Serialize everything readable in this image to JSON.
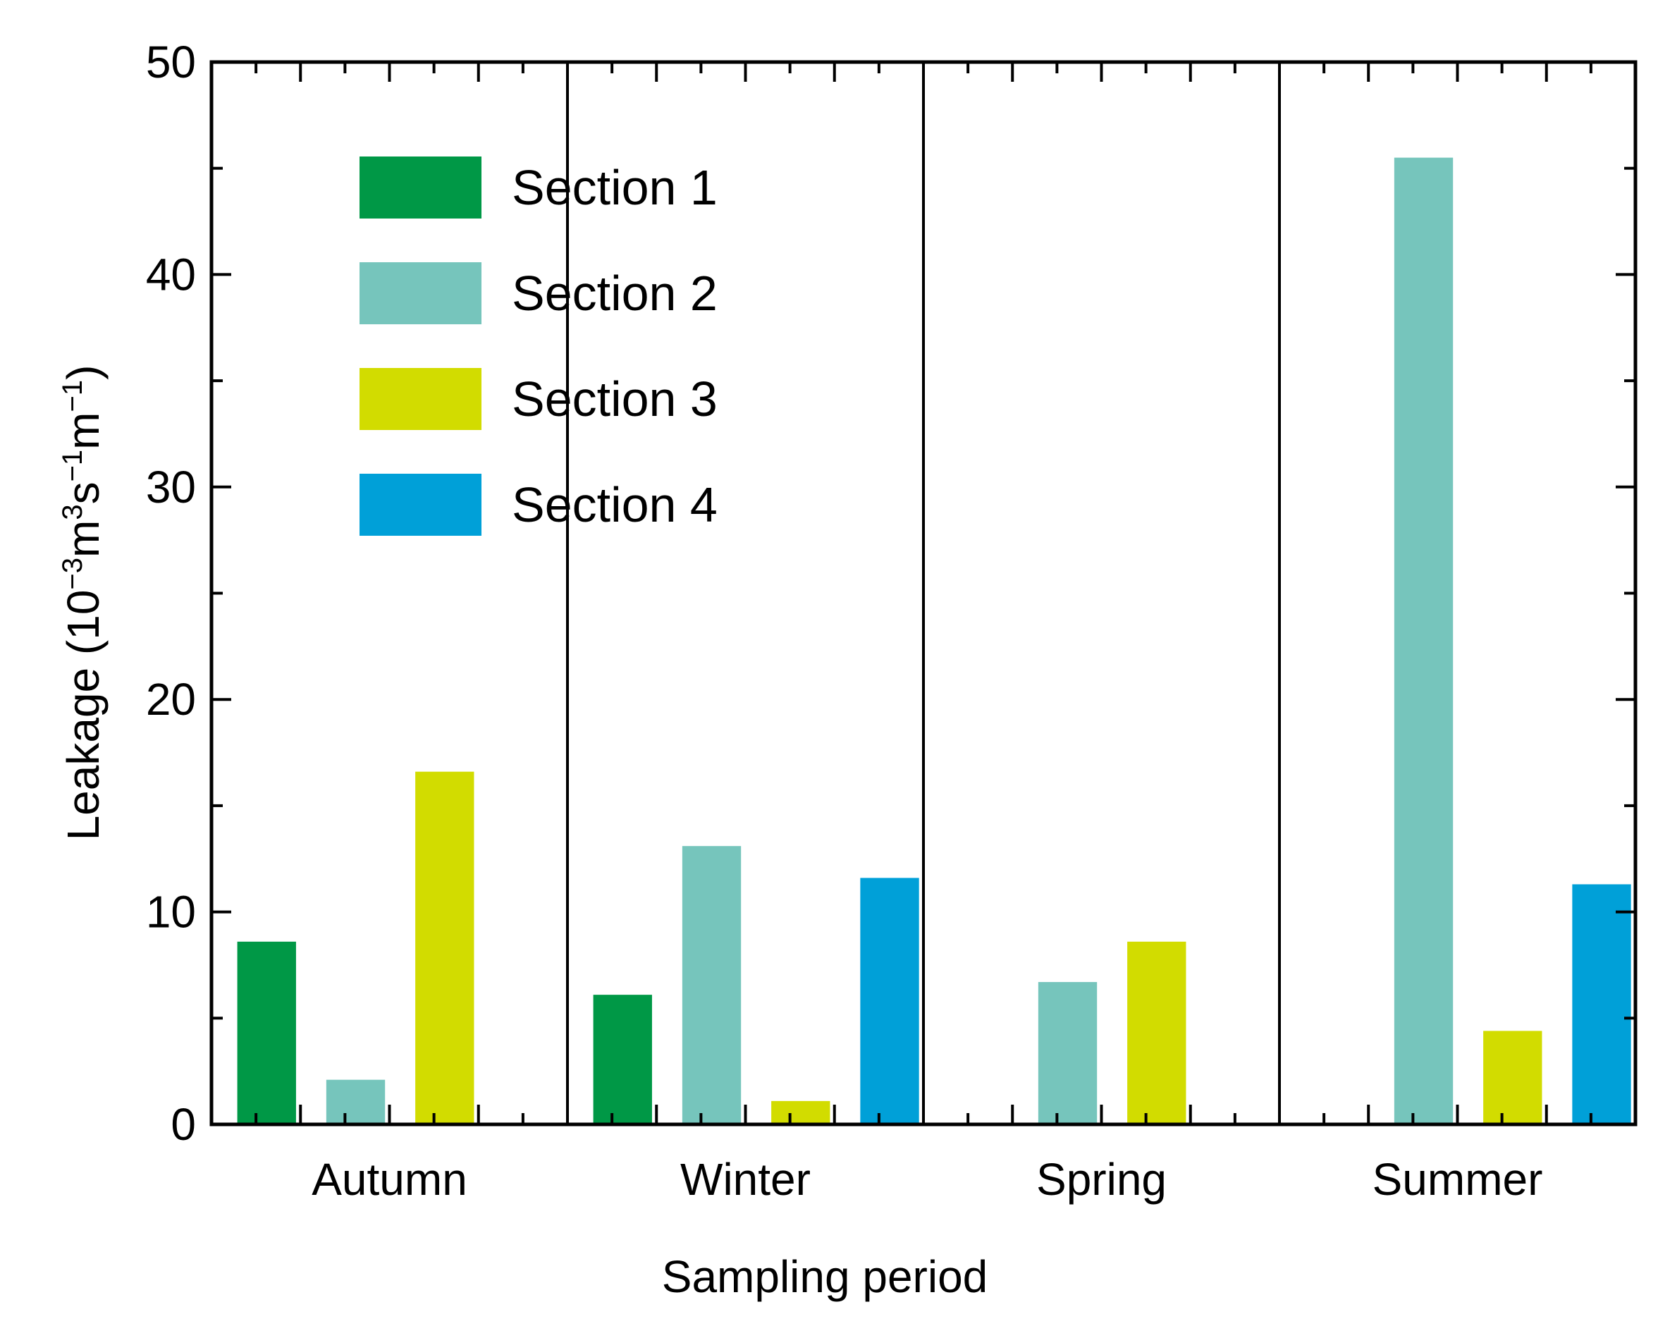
{
  "chart_data": {
    "type": "bar",
    "title": "",
    "xlabel": "Sampling period",
    "ylabel": "Leakage",
    "ylabel_unit": {
      "open": " (10",
      "exp1": "−3",
      "m": "m",
      "exp2": "3",
      "s": "s",
      "exp3": "−1",
      "m2": "m",
      "exp4": "−1",
      "close": ")"
    },
    "ylim": [
      0,
      50
    ],
    "yticks": [
      "0",
      "10",
      "20",
      "30",
      "40",
      "50"
    ],
    "categories": [
      "Autumn",
      "Winter",
      "Spring",
      "Summer"
    ],
    "series": [
      {
        "name": "Section 1",
        "color": "#009846",
        "values": [
          8.6,
          6.1,
          0,
          0
        ]
      },
      {
        "name": "Section 2",
        "color": "#76c5bc",
        "values": [
          2.1,
          13.1,
          6.7,
          45.5
        ]
      },
      {
        "name": "Section 3",
        "color": "#d2dc00",
        "values": [
          16.6,
          1.1,
          8.6,
          4.4
        ]
      },
      {
        "name": "Section 4",
        "color": "#00a0d8",
        "values": [
          0,
          11.6,
          0,
          11.3
        ]
      }
    ],
    "legend_position": "top-left",
    "grid": false,
    "category_separators": true
  }
}
